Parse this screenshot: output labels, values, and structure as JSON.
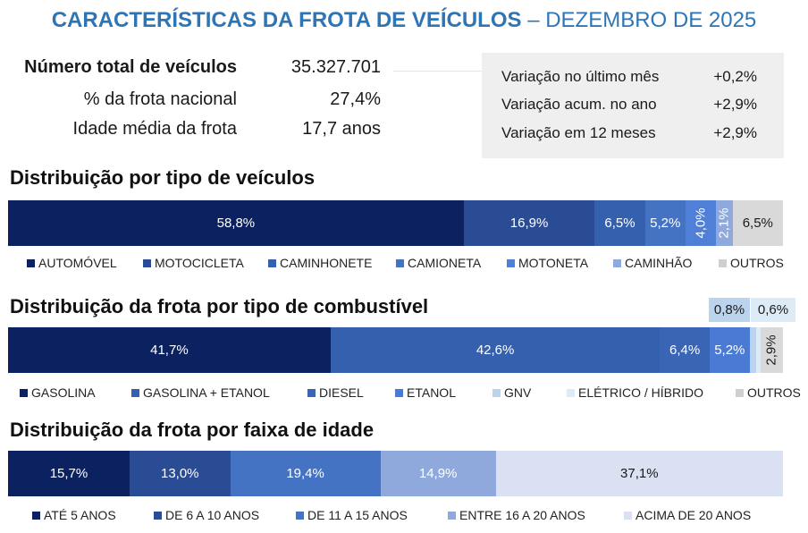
{
  "header": {
    "title_bold": "CARACTERÍSTICAS DA FROTA DE VEÍCULOS",
    "title_rest": "– DEZEMBRO DE 2025"
  },
  "summary": [
    {
      "label": "Número total de veículos",
      "value": "35.327.701"
    },
    {
      "label": "% da frota nacional",
      "value": "27,4%"
    },
    {
      "label": "Idade média da frota",
      "value": "17,7 anos"
    }
  ],
  "variations": [
    {
      "label": "Variação no último mês",
      "value": "+0,2%"
    },
    {
      "label": "Variação acum. no ano",
      "value": "+2,9%"
    },
    {
      "label": "Variação em 12 meses",
      "value": "+2,9%"
    }
  ],
  "chart_data": [
    {
      "type": "bar",
      "stacked": true,
      "orientation": "horizontal",
      "title": "Distribuição por tipo de veículos",
      "series": [
        {
          "name": "AUTOMÓVEL",
          "value": 58.8,
          "label": "58,8%",
          "color": "#0c2260"
        },
        {
          "name": "MOTOCICLETA",
          "value": 16.9,
          "label": "16,9%",
          "color": "#2a4c95"
        },
        {
          "name": "CAMINHONETE",
          "value": 6.5,
          "label": "6,5%",
          "color": "#3560ae"
        },
        {
          "name": "CAMIONETA",
          "value": 5.2,
          "label": "5,2%",
          "color": "#4473c4"
        },
        {
          "name": "MOTONETA",
          "value": 4.0,
          "label": "4,0%",
          "color": "#4f7fd6"
        },
        {
          "name": "CAMINHÃO",
          "value": 2.1,
          "label": "2,1%",
          "color": "#8fa9dc"
        },
        {
          "name": "OUTROS",
          "value": 6.5,
          "label": "6,5%",
          "color": "#d9d9d9"
        }
      ],
      "legend": "bottom"
    },
    {
      "type": "bar",
      "stacked": true,
      "orientation": "horizontal",
      "title": "Distribuição da frota por tipo de combustível",
      "series": [
        {
          "name": "GASOLINA",
          "value": 41.7,
          "label": "41,7%",
          "color": "#0c2260"
        },
        {
          "name": "GASOLINA + ETANOL",
          "value": 42.6,
          "label": "42,6%",
          "color": "#3560ae"
        },
        {
          "name": "DIESEL",
          "value": 6.4,
          "label": "6,4%",
          "color": "#3a64b4"
        },
        {
          "name": "ETANOL",
          "value": 5.2,
          "label": "5,2%",
          "color": "#4a7bd4"
        },
        {
          "name": "GNV",
          "value": 0.8,
          "label": "0,8%",
          "color": "#bcd3ee"
        },
        {
          "name": "ELÉTRICO / HÍBRIDO",
          "value": 0.6,
          "label": "0,6%",
          "color": "#ddebf7"
        },
        {
          "name": "OUTROS",
          "value": 2.9,
          "label": "2,9%",
          "color": "#d9d9d9"
        }
      ],
      "legend": "bottom"
    },
    {
      "type": "bar",
      "stacked": true,
      "orientation": "horizontal",
      "title": "Distribuição da frota por faixa de idade",
      "series": [
        {
          "name": "ATÉ 5 ANOS",
          "value": 15.7,
          "label": "15,7%",
          "color": "#0c2260"
        },
        {
          "name": "DE 6 A 10 ANOS",
          "value": 13.0,
          "label": "13,0%",
          "color": "#2a4c95"
        },
        {
          "name": "DE 11 A 15 ANOS",
          "value": 19.4,
          "label": "19,4%",
          "color": "#4473c4"
        },
        {
          "name": "ENTRE 16 A 20 ANOS",
          "value": 14.9,
          "label": "14,9%",
          "color": "#8fa9dc"
        },
        {
          "name": "ACIMA DE 20 ANOS",
          "value": 37.1,
          "label": "37,1%",
          "color": "#d9e1f2"
        }
      ],
      "legend": "bottom"
    }
  ]
}
